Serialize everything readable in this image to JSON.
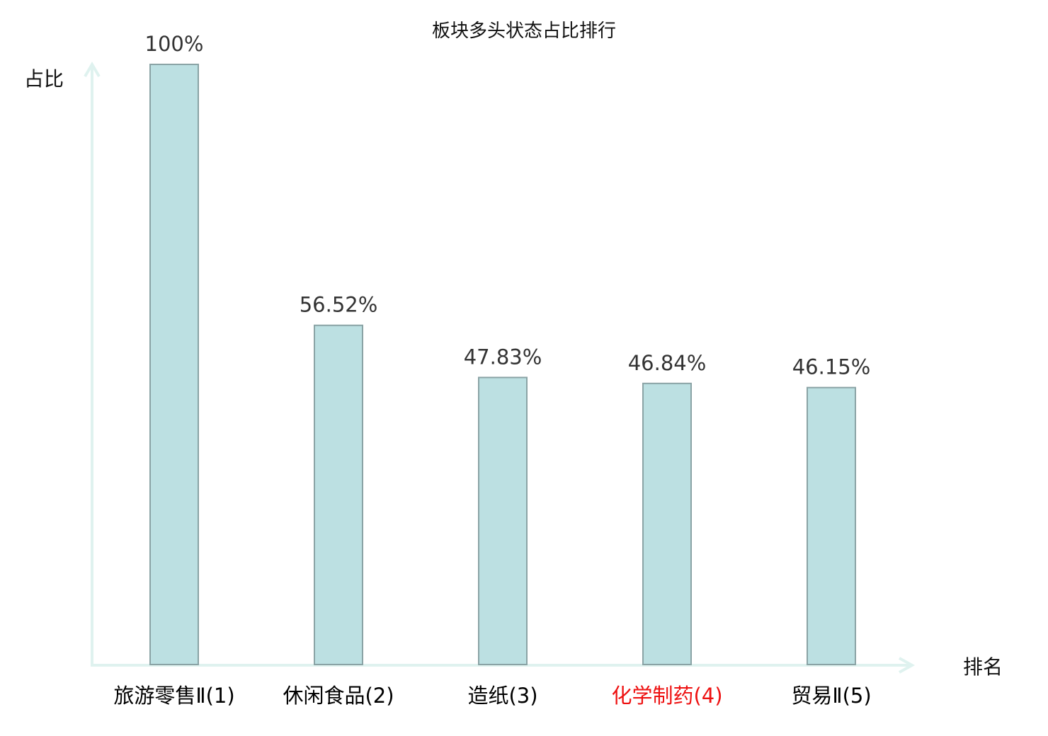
{
  "chart_data": {
    "type": "bar",
    "title": "板块多头状态占比排行",
    "xlabel": "排名",
    "ylabel": "占比",
    "ylim": [
      0,
      100
    ],
    "grid": false,
    "categories": [
      "旅游零售Ⅱ(1)",
      "休闲食品(2)",
      "造纸(3)",
      "化学制药(4)",
      "贸易Ⅱ(5)"
    ],
    "values": [
      100,
      56.52,
      47.83,
      46.84,
      46.15
    ],
    "data_labels": [
      "100%",
      "56.52%",
      "47.83%",
      "46.84%",
      "46.15%"
    ],
    "highlight_index": 3,
    "colors": {
      "bar_fill": "#bce0e2",
      "bar_stroke": "#8aa3a5",
      "axis": "#dff2ef",
      "label": "#000000",
      "highlight_label": "#ee1111",
      "value_label": "#333333"
    }
  }
}
